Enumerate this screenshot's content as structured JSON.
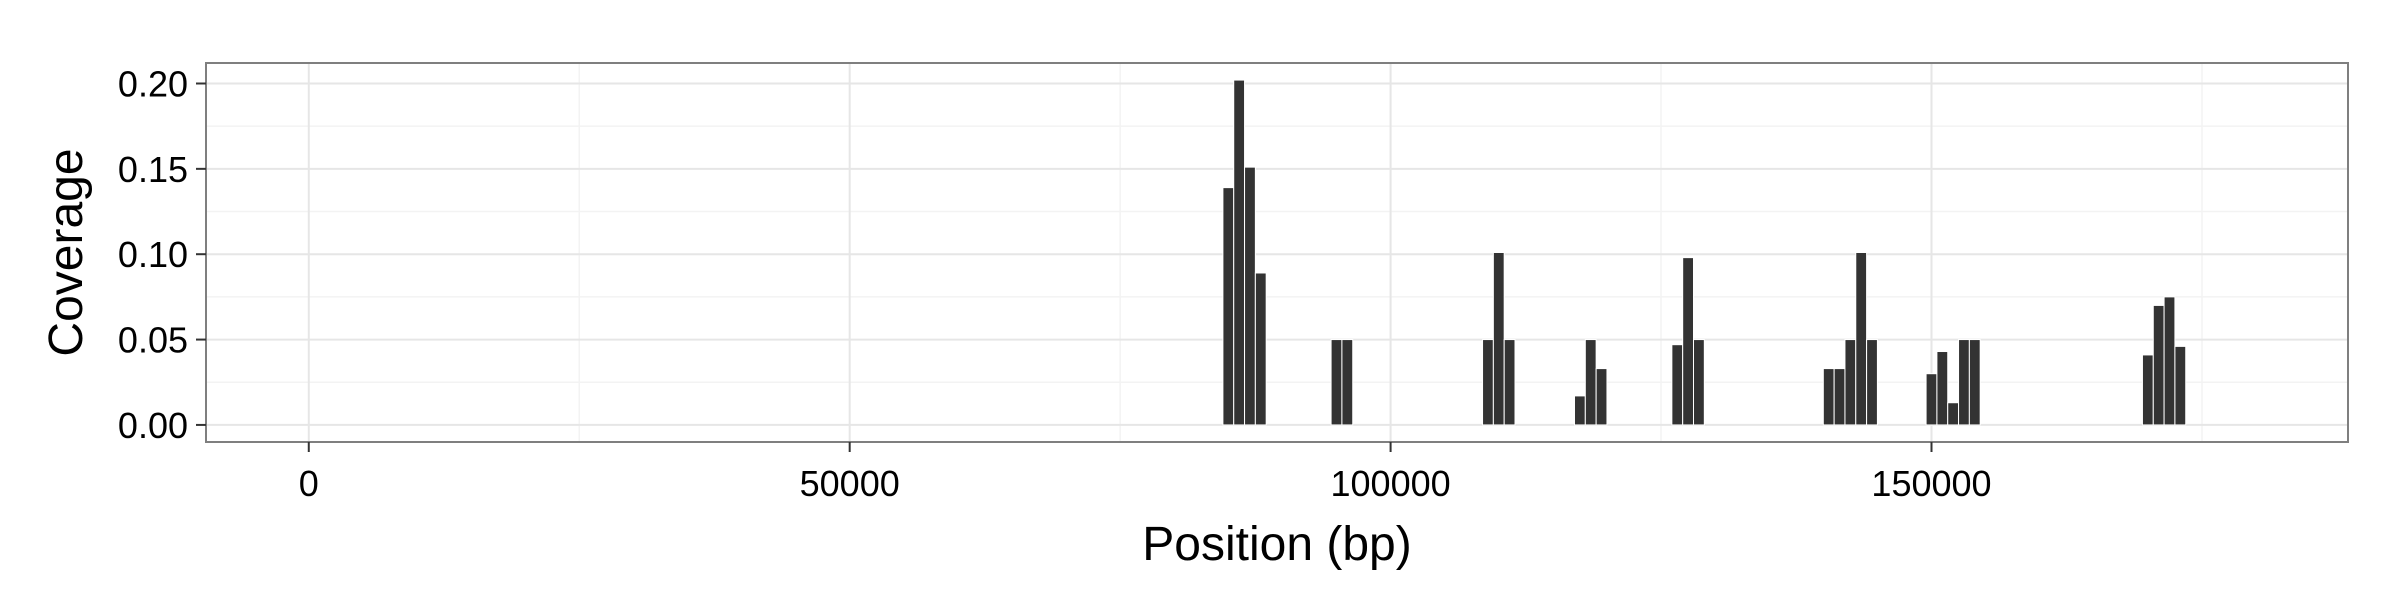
{
  "chart_data": {
    "type": "bar",
    "title": "",
    "xlabel": "Position (bp)",
    "ylabel": "Coverage",
    "xlim": [
      -9500,
      188500
    ],
    "ylim": [
      -0.01,
      0.212
    ],
    "x_ticks": [
      0,
      50000,
      100000,
      150000
    ],
    "y_ticks": [
      0.0,
      0.05,
      0.1,
      0.15,
      0.2
    ],
    "x_tick_labels": [
      "0",
      "50000",
      "100000",
      "150000"
    ],
    "y_tick_labels": [
      "0.00",
      "0.05",
      "0.10",
      "0.15",
      "0.20"
    ],
    "grid": true,
    "legend": "none",
    "bar_color": "#333333",
    "bin_width": 1000,
    "series": [
      {
        "x": [
          85000,
          86000,
          87000,
          88000,
          95000,
          96000,
          109000,
          110000,
          111000,
          117500,
          118500,
          119500,
          126500,
          127500,
          128500,
          140500,
          141500,
          142500,
          143500,
          144500,
          150000,
          151000,
          152000,
          153000,
          154000,
          170000,
          171000,
          172000,
          173000
        ],
        "values": [
          0.139,
          0.202,
          0.151,
          0.089,
          0.05,
          0.05,
          0.05,
          0.101,
          0.05,
          0.017,
          0.05,
          0.033,
          0.047,
          0.098,
          0.05,
          0.033,
          0.033,
          0.05,
          0.101,
          0.05,
          0.03,
          0.043,
          0.013,
          0.05,
          0.05,
          0.041,
          0.07,
          0.075,
          0.046
        ]
      }
    ]
  }
}
